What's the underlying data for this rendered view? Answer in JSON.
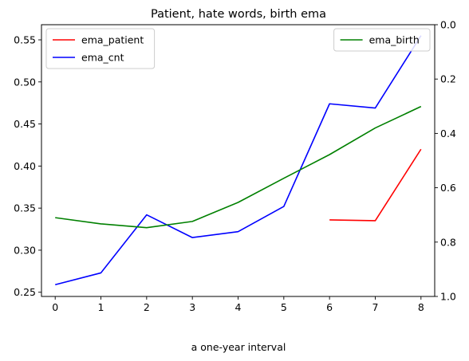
{
  "chart_data": {
    "type": "line",
    "title": "Patient, hate words, birth ema",
    "xlabel": "a one-year interval",
    "ylabel": "",
    "x": [
      0,
      1,
      2,
      3,
      4,
      5,
      6,
      7,
      8
    ],
    "x_ticks": [
      "0",
      "1",
      "2",
      "3",
      "4",
      "5",
      "6",
      "7",
      "8"
    ],
    "xlim": [
      -0.3,
      8.3
    ],
    "ylim": [
      0.245,
      0.568
    ],
    "y_ticks": [
      "0.25",
      "0.30",
      "0.35",
      "0.40",
      "0.45",
      "0.50",
      "0.55"
    ],
    "y2lim": [
      1.0,
      0.0
    ],
    "y2_ticks": [
      "0.0",
      "0.2",
      "0.4",
      "0.6",
      "0.8",
      "1.0"
    ],
    "grid": false,
    "series": [
      {
        "name": "ema_patient",
        "color": "#ff0000",
        "axis": "left",
        "values": [
          null,
          null,
          null,
          null,
          null,
          null,
          0.336,
          0.335,
          0.42
        ]
      },
      {
        "name": "ema_cnt",
        "color": "#0000ff",
        "axis": "left",
        "values": [
          0.259,
          0.273,
          0.342,
          0.315,
          0.322,
          0.352,
          0.474,
          0.469,
          0.555
        ]
      },
      {
        "name": "ema_birth",
        "color": "#008000",
        "axis": "right",
        "values": [
          0.71,
          0.733,
          0.747,
          0.724,
          0.654,
          0.565,
          0.478,
          0.38,
          0.301
        ]
      }
    ],
    "legends": [
      {
        "placement": "upper-left",
        "entries": [
          "ema_patient",
          "ema_cnt"
        ]
      },
      {
        "placement": "upper-right",
        "entries": [
          "ema_birth"
        ]
      }
    ]
  }
}
